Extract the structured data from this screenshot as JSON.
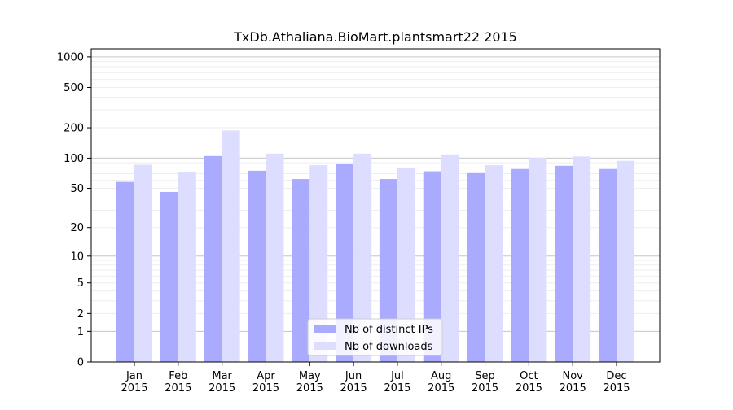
{
  "chart_data": {
    "type": "bar",
    "title": "TxDb.Athaliana.BioMart.plantsmart22 2015",
    "xlabel": "",
    "ylabel": "",
    "y_scale": "log(1+y)",
    "ylim": [
      0,
      1200
    ],
    "y_ticks": [
      0,
      1,
      2,
      5,
      10,
      20,
      50,
      100,
      200,
      500,
      1000
    ],
    "grid": "horizontal",
    "legend_position": "bottom-center",
    "categories": [
      "Jan\n2015",
      "Feb\n2015",
      "Mar\n2015",
      "Apr\n2015",
      "May\n2015",
      "Jun\n2015",
      "Jul\n2015",
      "Aug\n2015",
      "Sep\n2015",
      "Oct\n2015",
      "Nov\n2015",
      "Dec\n2015"
    ],
    "series": [
      {
        "name": "Nb of distinct IPs",
        "color": "#aaaaff",
        "values": [
          58,
          46,
          105,
          75,
          62,
          88,
          62,
          74,
          71,
          78,
          84,
          78
        ]
      },
      {
        "name": "Nb of downloads",
        "color": "#ddddff",
        "values": [
          86,
          72,
          188,
          111,
          85,
          111,
          80,
          109,
          85,
          101,
          104,
          94
        ]
      }
    ]
  }
}
